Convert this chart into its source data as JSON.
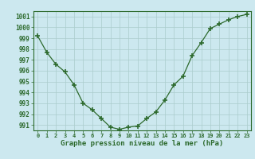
{
  "x": [
    0,
    1,
    2,
    3,
    4,
    5,
    6,
    7,
    8,
    9,
    10,
    11,
    12,
    13,
    14,
    15,
    16,
    17,
    18,
    19,
    20,
    21,
    22,
    23
  ],
  "y": [
    999.2,
    997.7,
    996.6,
    995.9,
    994.7,
    993.0,
    992.4,
    991.6,
    990.8,
    990.6,
    990.8,
    990.9,
    991.6,
    992.2,
    993.3,
    994.7,
    995.5,
    997.4,
    998.6,
    999.9,
    1000.3,
    1000.7,
    1001.0,
    1001.2
  ],
  "ylim": [
    990.5,
    1001.5
  ],
  "yticks": [
    991,
    992,
    993,
    994,
    995,
    996,
    997,
    998,
    999,
    1000,
    1001
  ],
  "xlabel": "Graphe pression niveau de la mer (hPa)",
  "line_color": "#2d6a2d",
  "marker_color": "#2d6a2d",
  "bg_color": "#cce8ef",
  "grid_color": "#aacccc",
  "axis_color": "#2d6a2d",
  "tick_color": "#2d6a2d",
  "xlabel_color": "#2d6a2d",
  "figsize": [
    3.2,
    2.0
  ],
  "dpi": 100
}
